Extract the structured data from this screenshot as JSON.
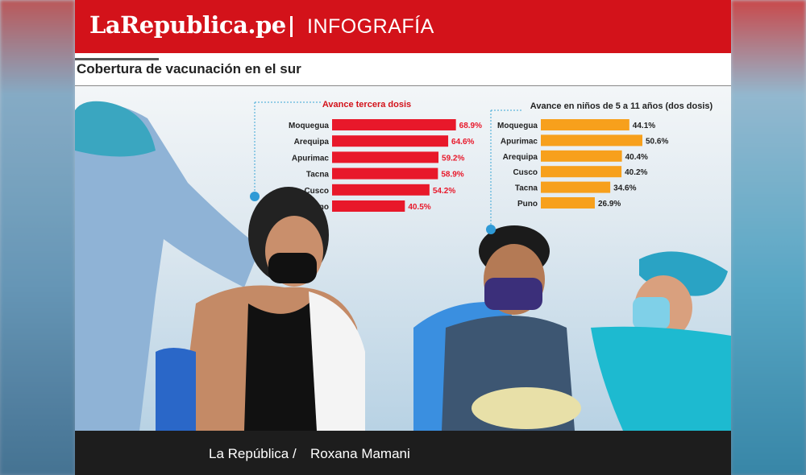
{
  "header": {
    "logo": "LaRepublica.pe",
    "section": "INFOGRAFÍA",
    "subtitle": "Cobertura de vacunación en el sur"
  },
  "footer": {
    "credit_source": "La República /",
    "credit_author": "Roxana Mamani"
  },
  "colors": {
    "brand_red": "#d3121a",
    "bar_red": "#e8182a",
    "bar_orange": "#f7a01c",
    "footer_bg": "#1d1d1d"
  },
  "chart_data": [
    {
      "type": "bar",
      "orientation": "horizontal",
      "title": "Avance tercera dosis",
      "categories": [
        "Moquegua",
        "Arequipa",
        "Apurimac",
        "Tacna",
        "Cusco",
        "Puno"
      ],
      "values": [
        68.9,
        64.6,
        59.2,
        58.9,
        54.2,
        40.5
      ],
      "value_labels": [
        "68.9%",
        "64.6%",
        "59.2%",
        "58.9%",
        "54.2%",
        "40.5%"
      ],
      "color": "#e8182a",
      "xlim": [
        0,
        100
      ]
    },
    {
      "type": "bar",
      "orientation": "horizontal",
      "title": "Avance en niños de 5 a 11 años (dos dosis)",
      "categories": [
        "Moquegua",
        "Apurimac",
        "Arequipa",
        "Cusco",
        "Tacna",
        "Puno"
      ],
      "values": [
        44.1,
        50.6,
        40.4,
        40.2,
        34.6,
        26.9
      ],
      "value_labels": [
        "44.1%",
        "50.6%",
        "40.4%",
        "40.2%",
        "34.6%",
        "26.9%"
      ],
      "color": "#f7a01c",
      "xlim": [
        0,
        100
      ]
    }
  ]
}
